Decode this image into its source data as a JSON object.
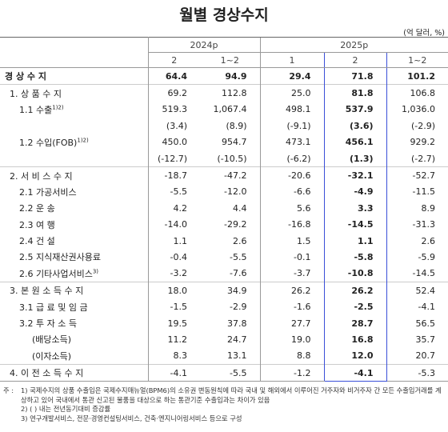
{
  "header": {
    "title": "월별 경상수지",
    "unit": "(억 달러, %)"
  },
  "table": {
    "groups": [
      "2024p",
      "2025p"
    ],
    "columns": [
      "2",
      "1~2",
      "1",
      "2",
      "1~2"
    ],
    "rows": [
      {
        "label": "경 상 수 지",
        "values": [
          "64.4",
          "94.9",
          "29.4",
          "71.8",
          "101.2"
        ]
      },
      {
        "label": "1. 상 품 수 지",
        "values": [
          "69.2",
          "112.8",
          "25.0",
          "81.8",
          "106.8"
        ]
      },
      {
        "label": "1.1 수출",
        "note": "1)2)",
        "values": [
          "519.3",
          "1,067.4",
          "498.1",
          "537.9",
          "1,036.0"
        ]
      },
      {
        "values": [
          "(3.4)",
          "(8.9)",
          "(-9.1)",
          "(3.6)",
          "(-2.9)"
        ]
      },
      {
        "label": "1.2 수입(FOB)",
        "note": "1)2)",
        "values": [
          "450.0",
          "954.7",
          "473.1",
          "456.1",
          "929.2"
        ]
      },
      {
        "values": [
          "(-12.7)",
          "(-10.5)",
          "(-6.2)",
          "(1.3)",
          "(-2.7)"
        ]
      },
      {
        "label": "2. 서 비 스 수 지",
        "values": [
          "-18.7",
          "-47.2",
          "-20.6",
          "-32.1",
          "-52.7"
        ]
      },
      {
        "label": "2.1 가공서비스",
        "values": [
          "-5.5",
          "-12.0",
          "-6.6",
          "-4.9",
          "-11.5"
        ]
      },
      {
        "label": "2.2 운 송",
        "values": [
          "4.2",
          "4.4",
          "5.6",
          "3.3",
          "8.9"
        ]
      },
      {
        "label": "2.3 여 행",
        "values": [
          "-14.0",
          "-29.2",
          "-16.8",
          "-14.5",
          "-31.3"
        ]
      },
      {
        "label": "2.4 건 설",
        "values": [
          "1.1",
          "2.6",
          "1.5",
          "1.1",
          "2.6"
        ]
      },
      {
        "label": "2.5 지식재산권사용료",
        "values": [
          "-0.4",
          "-5.5",
          "-0.1",
          "-5.8",
          "-5.9"
        ]
      },
      {
        "label": "2.6 기타사업서비스",
        "note": "3)",
        "values": [
          "-3.2",
          "-7.6",
          "-3.7",
          "-10.8",
          "-14.5"
        ]
      },
      {
        "label": "3. 본 원 소 득 수 지",
        "values": [
          "18.0",
          "34.9",
          "26.2",
          "26.2",
          "52.4"
        ]
      },
      {
        "label": "3.1 급 료 및 임 금",
        "values": [
          "-1.5",
          "-2.9",
          "-1.6",
          "-2.5",
          "-4.1"
        ]
      },
      {
        "label": "3.2 투 자 소 득",
        "values": [
          "19.5",
          "37.8",
          "27.7",
          "28.7",
          "56.5"
        ]
      },
      {
        "label": "(배당소득)",
        "values": [
          "11.2",
          "24.7",
          "19.0",
          "16.8",
          "35.7"
        ]
      },
      {
        "label": "(이자소득)",
        "values": [
          "8.3",
          "13.1",
          "8.8",
          "12.0",
          "20.7"
        ]
      },
      {
        "label": "4. 이 전 소 득 수 지",
        "values": [
          "-4.1",
          "-5.5",
          "-1.2",
          "-4.1",
          "-5.3"
        ]
      }
    ]
  },
  "notes": {
    "prefix": "주 :",
    "items": [
      "1) 국제수지의 상품 수출입은 국제수지매뉴얼(BPM6)의 소유권 변동원칙에 따라 국내 및 해외에서 이루어진 거주자와 비거주자 간 모든 수출입거래를 계상하고 있어 국내에서 통관 신고된 물품을 대상으로 하는 통관기준 수출입과는 차이가 있음",
      "2) ( ) 내는 전년동기대비 증감률",
      "3) 연구개발서비스, 전문·경영컨설팅서비스, 건축·엔지니어링서비스 등으로 구성"
    ]
  }
}
